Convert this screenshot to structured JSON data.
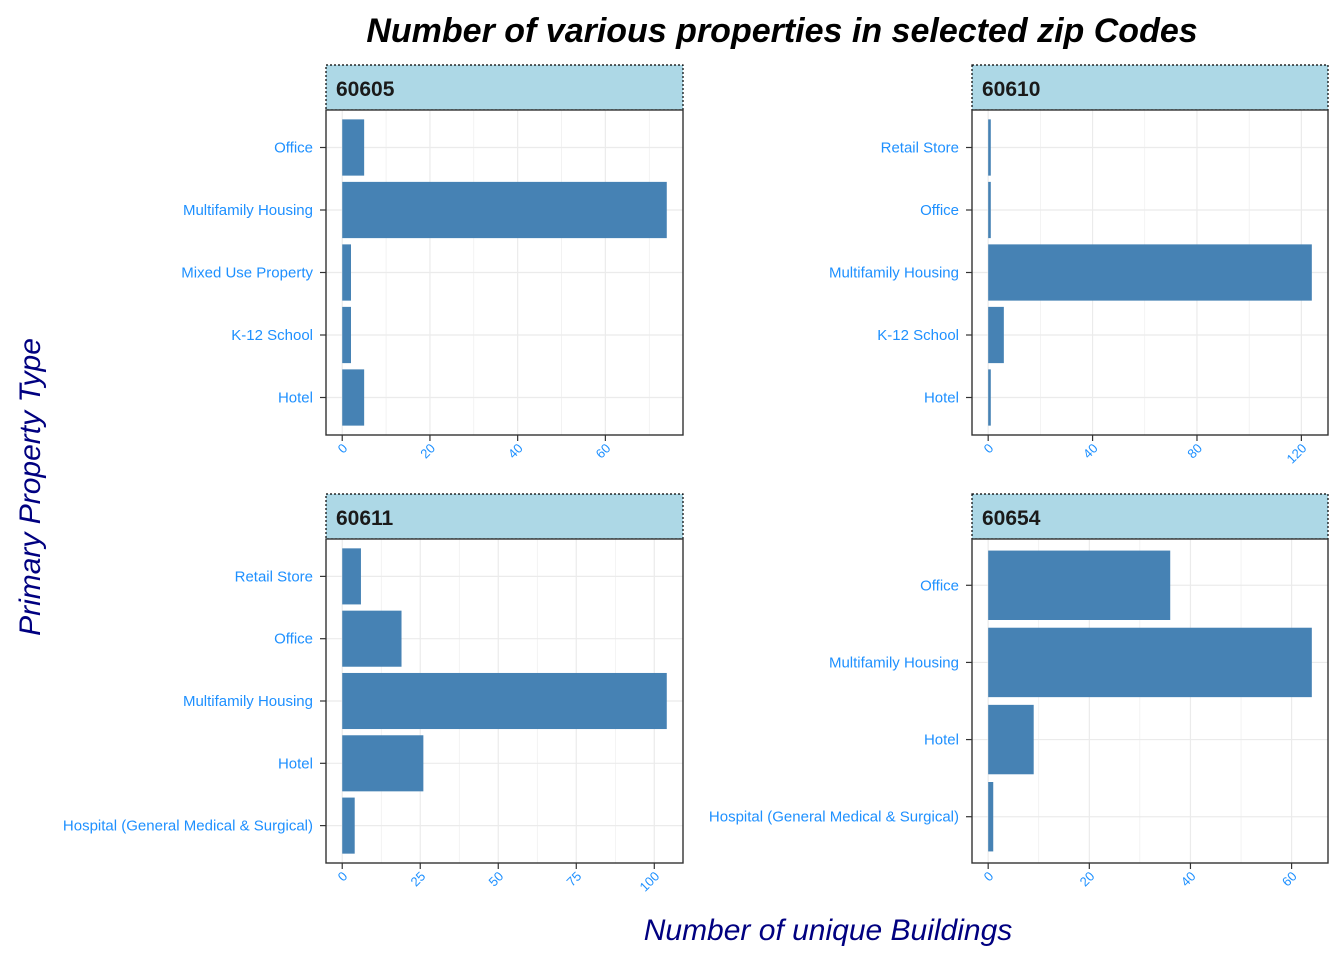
{
  "chart_data": {
    "type": "bar",
    "orientation": "horizontal",
    "title": "Number of various properties in selected zip Codes",
    "xlabel": "Number of unique Buildings",
    "ylabel": "Primary Property Type",
    "grid": true,
    "colors": {
      "bar": "#4682b4",
      "strip_fill": "#add8e6",
      "label": "#1e90ff",
      "axis_title": "#000080",
      "grid": "#ebebeb",
      "border": "#333333"
    },
    "facets": [
      {
        "name": "60605",
        "categories": [
          "Hotel",
          "K-12 School",
          "Mixed Use Property",
          "Multifamily Housing",
          "Office"
        ],
        "values": [
          5,
          2,
          2,
          74,
          5
        ],
        "xlim": [
          -3.7,
          77.7
        ],
        "ticks": [
          0,
          20,
          40,
          60
        ]
      },
      {
        "name": "60610",
        "categories": [
          "Hotel",
          "K-12 School",
          "Multifamily Housing",
          "Office",
          "Retail Store"
        ],
        "values": [
          1,
          6,
          124,
          1,
          1
        ],
        "xlim": [
          -6.2,
          130.2
        ],
        "ticks": [
          0,
          40,
          80,
          120
        ]
      },
      {
        "name": "60611",
        "categories": [
          "Hospital (General Medical & Surgical)",
          "Hotel",
          "Multifamily Housing",
          "Office",
          "Retail Store"
        ],
        "values": [
          4,
          26,
          104,
          19,
          6
        ],
        "xlim": [
          -5.2,
          109.2
        ],
        "ticks": [
          0,
          25,
          50,
          75,
          100
        ]
      },
      {
        "name": "60654",
        "categories": [
          "Hospital (General Medical & Surgical)",
          "Hotel",
          "Multifamily Housing",
          "Office"
        ],
        "values": [
          1,
          9,
          64,
          36
        ],
        "xlim": [
          -3.2,
          67.2
        ],
        "ticks": [
          0,
          20,
          40,
          60
        ]
      }
    ]
  }
}
